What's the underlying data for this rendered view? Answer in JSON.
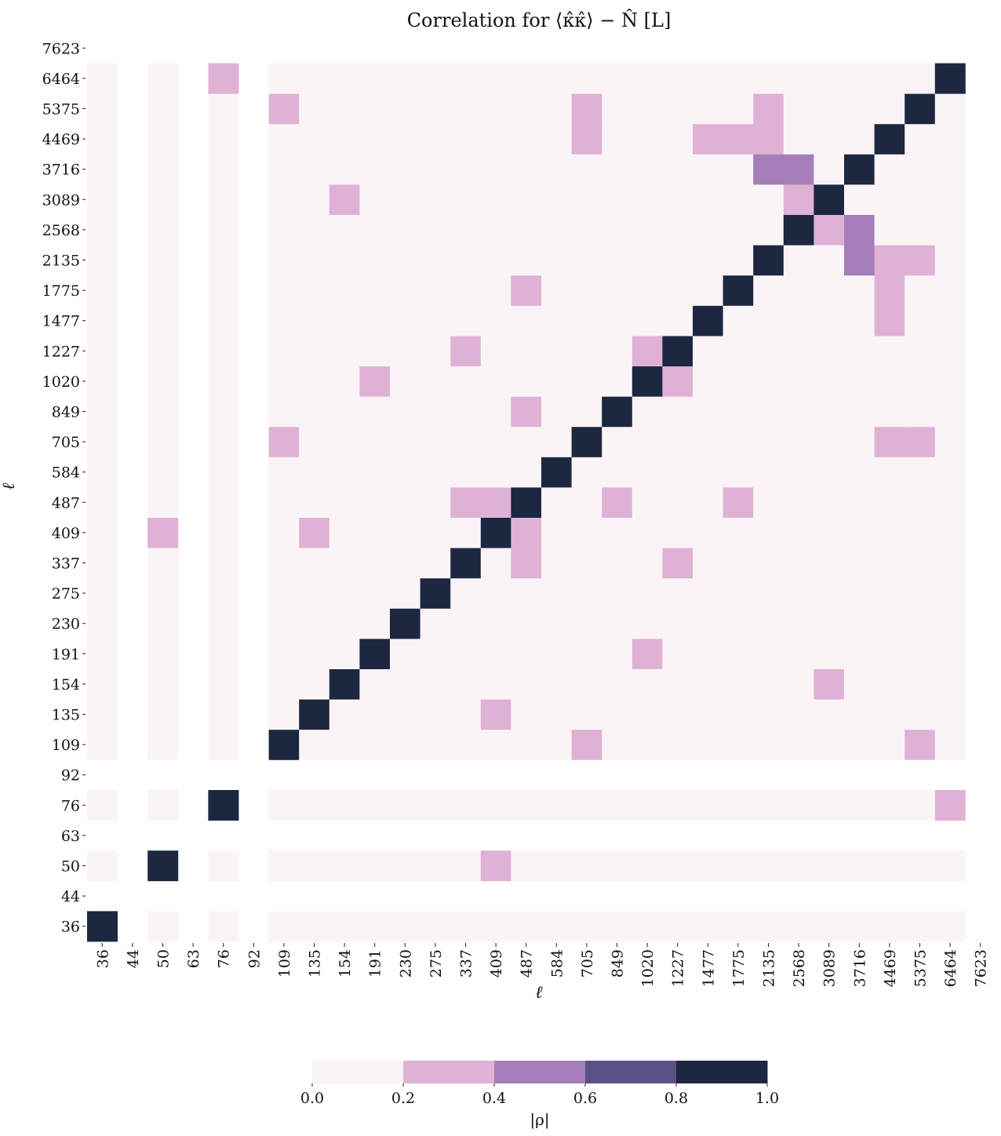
{
  "chart_data": {
    "type": "heatmap",
    "title": "Correlation for ⟨κ̂κ̂⟩ − N̂ [L]",
    "xlabel": "ℓ",
    "ylabel": "ℓ",
    "ticks": [
      "36",
      "44",
      "50",
      "63",
      "76",
      "92",
      "109",
      "135",
      "154",
      "191",
      "230",
      "275",
      "337",
      "409",
      "487",
      "584",
      "705",
      "849",
      "1020",
      "1227",
      "1477",
      "1775",
      "2135",
      "2568",
      "3089",
      "3716",
      "4469",
      "5375",
      "6464",
      "7623"
    ],
    "empty_bins": [
      1,
      3,
      5
    ],
    "diagonal_value": 1.0,
    "default_abs_rho": 0.1,
    "cells": [
      {
        "x": 4,
        "y": 28,
        "v": 0.3
      },
      {
        "x": 28,
        "y": 28,
        "v": 1.0
      },
      {
        "x": 6,
        "y": 27,
        "v": 0.3
      },
      {
        "x": 16,
        "y": 27,
        "v": 0.3
      },
      {
        "x": 22,
        "y": 27,
        "v": 0.3
      },
      {
        "x": 27,
        "y": 27,
        "v": 1.0
      },
      {
        "x": 16,
        "y": 26,
        "v": 0.3
      },
      {
        "x": 20,
        "y": 26,
        "v": 0.3
      },
      {
        "x": 21,
        "y": 26,
        "v": 0.3
      },
      {
        "x": 22,
        "y": 26,
        "v": 0.3
      },
      {
        "x": 26,
        "y": 26,
        "v": 1.0
      },
      {
        "x": 22,
        "y": 25,
        "v": 0.5
      },
      {
        "x": 23,
        "y": 25,
        "v": 0.5
      },
      {
        "x": 25,
        "y": 25,
        "v": 1.0
      },
      {
        "x": 8,
        "y": 24,
        "v": 0.3
      },
      {
        "x": 23,
        "y": 24,
        "v": 0.3
      },
      {
        "x": 24,
        "y": 24,
        "v": 1.0
      },
      {
        "x": 23,
        "y": 23,
        "v": 1.0
      },
      {
        "x": 24,
        "y": 23,
        "v": 0.3
      },
      {
        "x": 25,
        "y": 23,
        "v": 0.5
      },
      {
        "x": 22,
        "y": 22,
        "v": 1.0
      },
      {
        "x": 25,
        "y": 22,
        "v": 0.5
      },
      {
        "x": 26,
        "y": 22,
        "v": 0.3
      },
      {
        "x": 27,
        "y": 22,
        "v": 0.3
      },
      {
        "x": 14,
        "y": 21,
        "v": 0.3
      },
      {
        "x": 21,
        "y": 21,
        "v": 1.0
      },
      {
        "x": 26,
        "y": 21,
        "v": 0.3
      },
      {
        "x": 20,
        "y": 20,
        "v": 1.0
      },
      {
        "x": 26,
        "y": 20,
        "v": 0.3
      },
      {
        "x": 12,
        "y": 19,
        "v": 0.3
      },
      {
        "x": 18,
        "y": 19,
        "v": 0.3
      },
      {
        "x": 19,
        "y": 19,
        "v": 1.0
      },
      {
        "x": 9,
        "y": 18,
        "v": 0.3
      },
      {
        "x": 18,
        "y": 18,
        "v": 1.0
      },
      {
        "x": 19,
        "y": 18,
        "v": 0.3
      },
      {
        "x": 14,
        "y": 17,
        "v": 0.3
      },
      {
        "x": 17,
        "y": 17,
        "v": 1.0
      },
      {
        "x": 6,
        "y": 16,
        "v": 0.3
      },
      {
        "x": 16,
        "y": 16,
        "v": 1.0
      },
      {
        "x": 26,
        "y": 16,
        "v": 0.3
      },
      {
        "x": 27,
        "y": 16,
        "v": 0.3
      },
      {
        "x": 15,
        "y": 15,
        "v": 1.0
      },
      {
        "x": 12,
        "y": 14,
        "v": 0.3
      },
      {
        "x": 13,
        "y": 14,
        "v": 0.3
      },
      {
        "x": 14,
        "y": 14,
        "v": 1.0
      },
      {
        "x": 17,
        "y": 14,
        "v": 0.3
      },
      {
        "x": 21,
        "y": 14,
        "v": 0.3
      },
      {
        "x": 2,
        "y": 13,
        "v": 0.3
      },
      {
        "x": 7,
        "y": 13,
        "v": 0.3
      },
      {
        "x": 13,
        "y": 13,
        "v": 1.0
      },
      {
        "x": 14,
        "y": 13,
        "v": 0.3
      },
      {
        "x": 12,
        "y": 12,
        "v": 1.0
      },
      {
        "x": 14,
        "y": 12,
        "v": 0.3
      },
      {
        "x": 19,
        "y": 12,
        "v": 0.3
      },
      {
        "x": 11,
        "y": 11,
        "v": 1.0
      },
      {
        "x": 10,
        "y": 10,
        "v": 1.0
      },
      {
        "x": 9,
        "y": 9,
        "v": 1.0
      },
      {
        "x": 18,
        "y": 9,
        "v": 0.3
      },
      {
        "x": 8,
        "y": 8,
        "v": 1.0
      },
      {
        "x": 24,
        "y": 8,
        "v": 0.3
      },
      {
        "x": 7,
        "y": 7,
        "v": 1.0
      },
      {
        "x": 13,
        "y": 7,
        "v": 0.3
      },
      {
        "x": 6,
        "y": 6,
        "v": 1.0
      },
      {
        "x": 16,
        "y": 6,
        "v": 0.3
      },
      {
        "x": 27,
        "y": 6,
        "v": 0.3
      },
      {
        "x": 4,
        "y": 4,
        "v": 1.0
      },
      {
        "x": 28,
        "y": 4,
        "v": 0.3
      },
      {
        "x": 2,
        "y": 2,
        "v": 1.0
      },
      {
        "x": 13,
        "y": 2,
        "v": 0.3
      },
      {
        "x": 0,
        "y": 0,
        "v": 1.0
      }
    ],
    "colorbar": {
      "label": "|ρ|",
      "bounds": [
        0.0,
        0.2,
        0.4,
        0.6,
        0.8,
        1.0
      ],
      "tick_labels": [
        "0.0",
        "0.2",
        "0.4",
        "0.6",
        "0.8",
        "1.0"
      ],
      "colors": [
        "#fbf4f7",
        "#dfb2d5",
        "#a57eb9",
        "#5a5286",
        "#1b2840"
      ]
    }
  }
}
